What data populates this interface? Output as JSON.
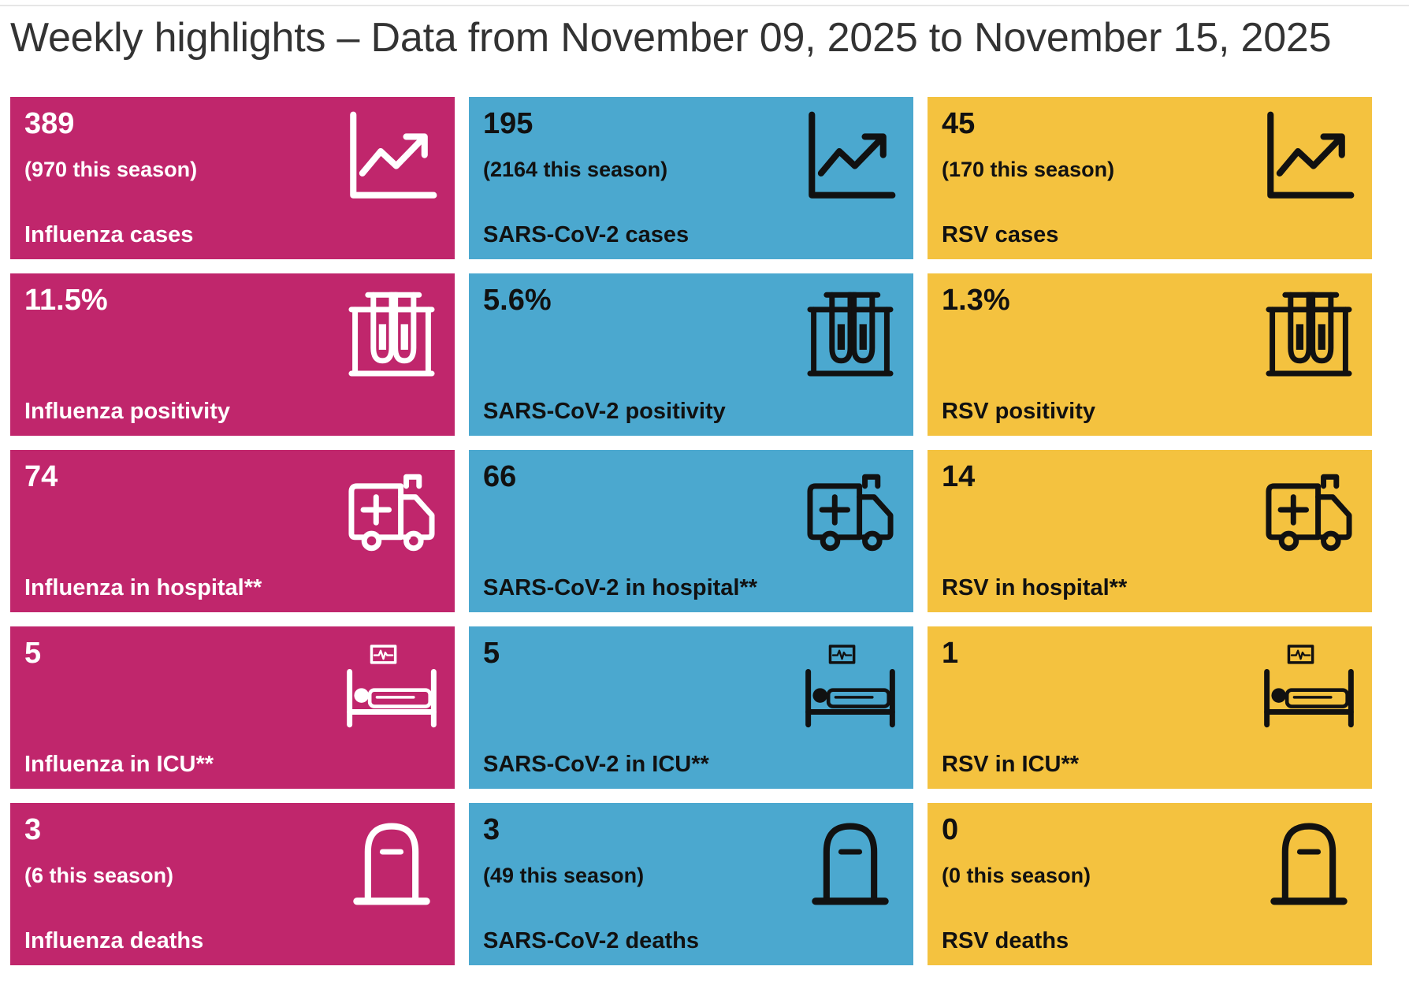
{
  "page": {
    "title": "Weekly highlights – Data from November 09, 2025 to November 15, 2025"
  },
  "colors": {
    "influenza": "#c0266c",
    "sars_cov_2": "#4ba8cf",
    "rsv": "#f4c23f"
  },
  "rows": [
    {
      "icon": "trend-chart-icon",
      "cards": [
        {
          "value": "389",
          "season": "(970 this season)",
          "label": "Influenza cases"
        },
        {
          "value": "195",
          "season": "(2164 this season)",
          "label": "SARS-CoV-2 cases"
        },
        {
          "value": "45",
          "season": "(170 this season)",
          "label": "RSV cases"
        }
      ]
    },
    {
      "icon": "test-tubes-icon",
      "cards": [
        {
          "value": "11.5%",
          "label": "Influenza positivity"
        },
        {
          "value": "5.6%",
          "label": "SARS-CoV-2 positivity"
        },
        {
          "value": "1.3%",
          "label": "RSV positivity"
        }
      ]
    },
    {
      "icon": "ambulance-icon",
      "cards": [
        {
          "value": "74",
          "label": "Influenza in hospital**"
        },
        {
          "value": "66",
          "label": "SARS-CoV-2 in hospital**"
        },
        {
          "value": "14",
          "label": "RSV in hospital**"
        }
      ]
    },
    {
      "icon": "hospital-bed-icon",
      "cards": [
        {
          "value": "5",
          "label": "Influenza in ICU**"
        },
        {
          "value": "5",
          "label": "SARS-CoV-2 in ICU**"
        },
        {
          "value": "1",
          "label": "RSV in ICU**"
        }
      ]
    },
    {
      "icon": "tombstone-icon",
      "cards": [
        {
          "value": "3",
          "season": "(6 this season)",
          "label": "Influenza deaths"
        },
        {
          "value": "3",
          "season": "(49 this season)",
          "label": "SARS-CoV-2 deaths"
        },
        {
          "value": "0",
          "season": "(0 this season)",
          "label": "RSV deaths"
        }
      ]
    }
  ]
}
